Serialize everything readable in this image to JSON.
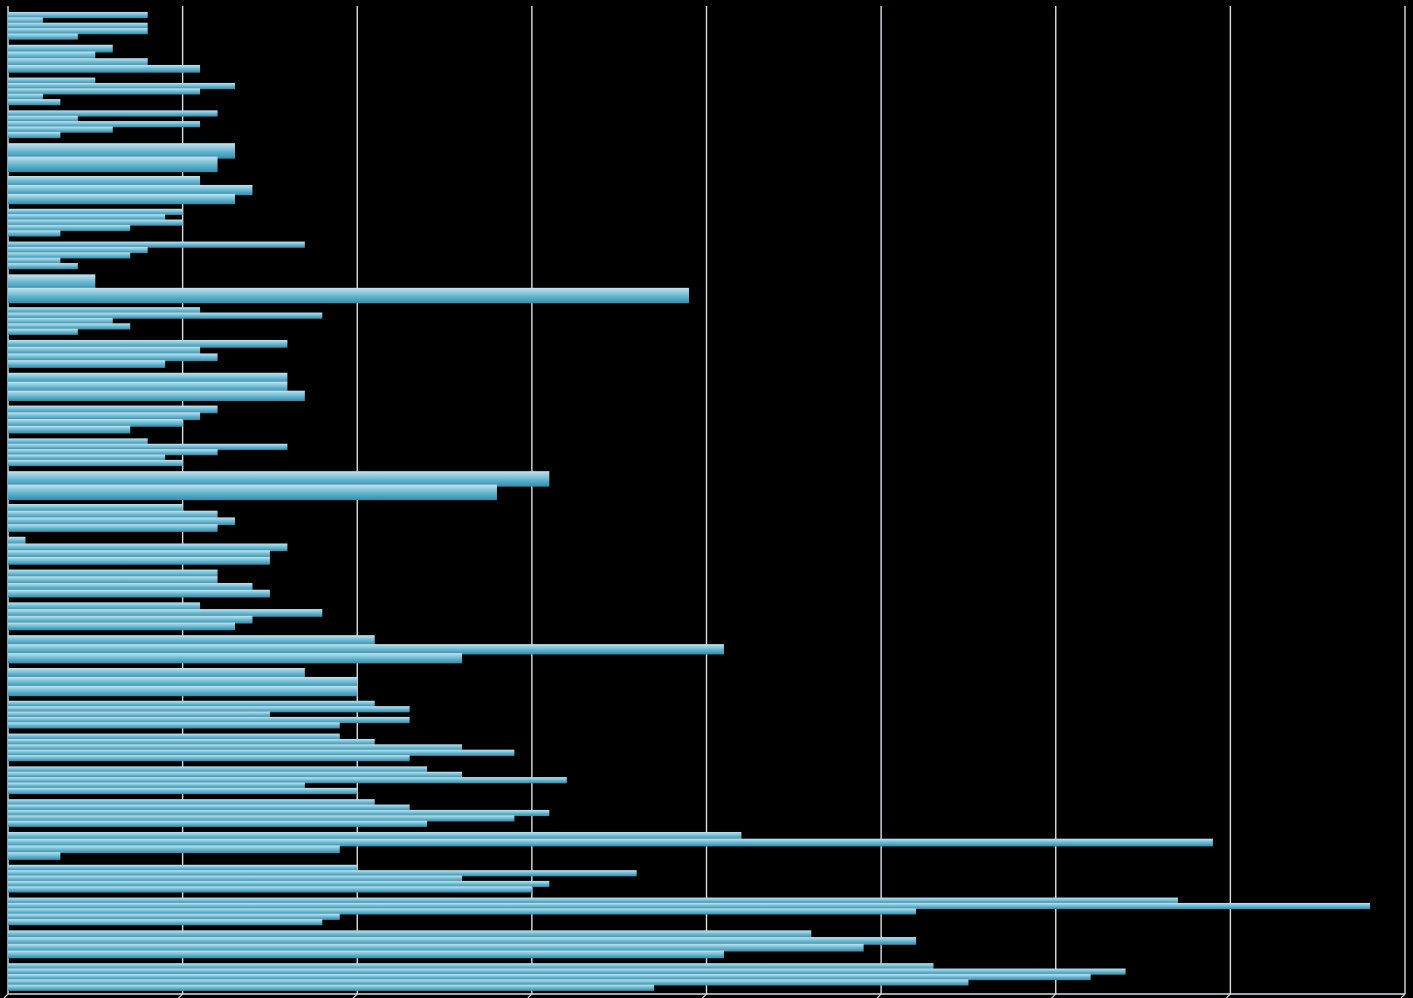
{
  "chart_data": {
    "type": "bar",
    "orientation": "horizontal",
    "xlim": [
      0,
      80
    ],
    "gridlines": [
      0,
      10,
      20,
      30,
      40,
      50,
      60,
      70,
      80
    ],
    "grid": true,
    "legend": "none",
    "axis_tick_labels_visible": false,
    "colors": {
      "background": "#000000",
      "grid": "#d8dde4",
      "bar_light": "#a9d4e2",
      "bar_mid": "#6cb8d0",
      "bar_dark": "#2f96b6"
    },
    "groups": [
      {
        "values": [
          8,
          2,
          8,
          8,
          4
        ]
      },
      {
        "values": [
          6,
          5,
          8,
          11
        ]
      },
      {
        "values": [
          5,
          13,
          11,
          2,
          3
        ]
      },
      {
        "values": [
          12,
          4,
          11,
          6,
          3
        ]
      },
      {
        "values": [
          13,
          12
        ]
      },
      {
        "values": [
          11,
          14,
          13
        ]
      },
      {
        "values": [
          10,
          9,
          10,
          7,
          3
        ]
      },
      {
        "values": [
          17,
          8,
          7,
          3,
          4
        ]
      },
      {
        "values": [
          5,
          39
        ]
      },
      {
        "values": [
          11,
          18,
          6,
          7,
          4
        ]
      },
      {
        "values": [
          16,
          11,
          12,
          9
        ]
      },
      {
        "values": [
          16,
          16,
          17
        ]
      },
      {
        "values": [
          12,
          11,
          10,
          7
        ]
      },
      {
        "values": [
          8,
          16,
          12,
          9,
          10
        ]
      },
      {
        "values": [
          31,
          28
        ]
      },
      {
        "values": [
          10,
          12,
          13,
          12
        ]
      },
      {
        "values": [
          1,
          16,
          15,
          15
        ]
      },
      {
        "values": [
          12,
          12,
          14,
          15
        ]
      },
      {
        "values": [
          11,
          18,
          14,
          13
        ]
      },
      {
        "values": [
          21,
          41,
          26
        ]
      },
      {
        "values": [
          17,
          20,
          20
        ]
      },
      {
        "values": [
          21,
          23,
          15,
          23,
          19
        ]
      },
      {
        "values": [
          19,
          21,
          26,
          29,
          23
        ]
      },
      {
        "values": [
          24,
          26,
          32,
          17,
          20
        ]
      },
      {
        "values": [
          21,
          23,
          31,
          29,
          24
        ]
      },
      {
        "values": [
          42,
          69,
          19,
          3
        ]
      },
      {
        "values": [
          20,
          36,
          26,
          31,
          30
        ]
      },
      {
        "values": [
          67,
          78,
          52,
          19,
          18
        ]
      },
      {
        "values": [
          46,
          52,
          49,
          41
        ]
      },
      {
        "values": [
          53,
          64,
          62,
          55,
          37
        ]
      }
    ]
  }
}
